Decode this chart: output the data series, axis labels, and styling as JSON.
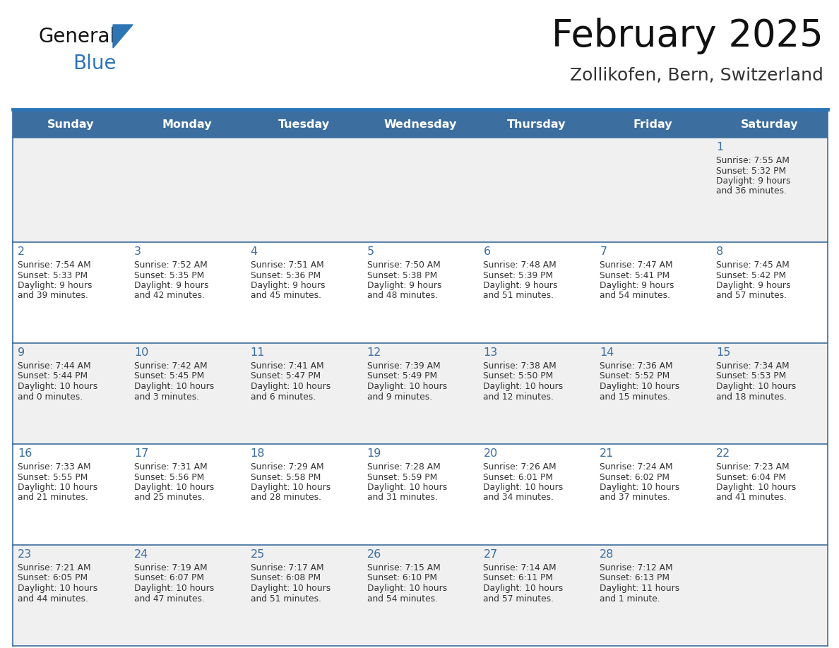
{
  "title": "February 2025",
  "subtitle": "Zollikofen, Bern, Switzerland",
  "header_bg_color": "#3c6e9f",
  "header_text_color": "#ffffff",
  "cell_bg_color_light": "#f0f0f0",
  "cell_bg_color_white": "#ffffff",
  "day_number_color": "#3c6e9f",
  "cell_text_color": "#333333",
  "border_color": "#3c6e9f",
  "days_of_week": [
    "Sunday",
    "Monday",
    "Tuesday",
    "Wednesday",
    "Thursday",
    "Friday",
    "Saturday"
  ],
  "weeks": [
    [
      {
        "day": null,
        "sunrise": null,
        "sunset": null,
        "daylight": null
      },
      {
        "day": null,
        "sunrise": null,
        "sunset": null,
        "daylight": null
      },
      {
        "day": null,
        "sunrise": null,
        "sunset": null,
        "daylight": null
      },
      {
        "day": null,
        "sunrise": null,
        "sunset": null,
        "daylight": null
      },
      {
        "day": null,
        "sunrise": null,
        "sunset": null,
        "daylight": null
      },
      {
        "day": null,
        "sunrise": null,
        "sunset": null,
        "daylight": null
      },
      {
        "day": 1,
        "sunrise": "7:55 AM",
        "sunset": "5:32 PM",
        "daylight": "9 hours\nand 36 minutes."
      }
    ],
    [
      {
        "day": 2,
        "sunrise": "7:54 AM",
        "sunset": "5:33 PM",
        "daylight": "9 hours\nand 39 minutes."
      },
      {
        "day": 3,
        "sunrise": "7:52 AM",
        "sunset": "5:35 PM",
        "daylight": "9 hours\nand 42 minutes."
      },
      {
        "day": 4,
        "sunrise": "7:51 AM",
        "sunset": "5:36 PM",
        "daylight": "9 hours\nand 45 minutes."
      },
      {
        "day": 5,
        "sunrise": "7:50 AM",
        "sunset": "5:38 PM",
        "daylight": "9 hours\nand 48 minutes."
      },
      {
        "day": 6,
        "sunrise": "7:48 AM",
        "sunset": "5:39 PM",
        "daylight": "9 hours\nand 51 minutes."
      },
      {
        "day": 7,
        "sunrise": "7:47 AM",
        "sunset": "5:41 PM",
        "daylight": "9 hours\nand 54 minutes."
      },
      {
        "day": 8,
        "sunrise": "7:45 AM",
        "sunset": "5:42 PM",
        "daylight": "9 hours\nand 57 minutes."
      }
    ],
    [
      {
        "day": 9,
        "sunrise": "7:44 AM",
        "sunset": "5:44 PM",
        "daylight": "10 hours\nand 0 minutes."
      },
      {
        "day": 10,
        "sunrise": "7:42 AM",
        "sunset": "5:45 PM",
        "daylight": "10 hours\nand 3 minutes."
      },
      {
        "day": 11,
        "sunrise": "7:41 AM",
        "sunset": "5:47 PM",
        "daylight": "10 hours\nand 6 minutes."
      },
      {
        "day": 12,
        "sunrise": "7:39 AM",
        "sunset": "5:49 PM",
        "daylight": "10 hours\nand 9 minutes."
      },
      {
        "day": 13,
        "sunrise": "7:38 AM",
        "sunset": "5:50 PM",
        "daylight": "10 hours\nand 12 minutes."
      },
      {
        "day": 14,
        "sunrise": "7:36 AM",
        "sunset": "5:52 PM",
        "daylight": "10 hours\nand 15 minutes."
      },
      {
        "day": 15,
        "sunrise": "7:34 AM",
        "sunset": "5:53 PM",
        "daylight": "10 hours\nand 18 minutes."
      }
    ],
    [
      {
        "day": 16,
        "sunrise": "7:33 AM",
        "sunset": "5:55 PM",
        "daylight": "10 hours\nand 21 minutes."
      },
      {
        "day": 17,
        "sunrise": "7:31 AM",
        "sunset": "5:56 PM",
        "daylight": "10 hours\nand 25 minutes."
      },
      {
        "day": 18,
        "sunrise": "7:29 AM",
        "sunset": "5:58 PM",
        "daylight": "10 hours\nand 28 minutes."
      },
      {
        "day": 19,
        "sunrise": "7:28 AM",
        "sunset": "5:59 PM",
        "daylight": "10 hours\nand 31 minutes."
      },
      {
        "day": 20,
        "sunrise": "7:26 AM",
        "sunset": "6:01 PM",
        "daylight": "10 hours\nand 34 minutes."
      },
      {
        "day": 21,
        "sunrise": "7:24 AM",
        "sunset": "6:02 PM",
        "daylight": "10 hours\nand 37 minutes."
      },
      {
        "day": 22,
        "sunrise": "7:23 AM",
        "sunset": "6:04 PM",
        "daylight": "10 hours\nand 41 minutes."
      }
    ],
    [
      {
        "day": 23,
        "sunrise": "7:21 AM",
        "sunset": "6:05 PM",
        "daylight": "10 hours\nand 44 minutes."
      },
      {
        "day": 24,
        "sunrise": "7:19 AM",
        "sunset": "6:07 PM",
        "daylight": "10 hours\nand 47 minutes."
      },
      {
        "day": 25,
        "sunrise": "7:17 AM",
        "sunset": "6:08 PM",
        "daylight": "10 hours\nand 51 minutes."
      },
      {
        "day": 26,
        "sunrise": "7:15 AM",
        "sunset": "6:10 PM",
        "daylight": "10 hours\nand 54 minutes."
      },
      {
        "day": 27,
        "sunrise": "7:14 AM",
        "sunset": "6:11 PM",
        "daylight": "10 hours\nand 57 minutes."
      },
      {
        "day": 28,
        "sunrise": "7:12 AM",
        "sunset": "6:13 PM",
        "daylight": "11 hours\nand 1 minute."
      },
      {
        "day": null,
        "sunrise": null,
        "sunset": null,
        "daylight": null
      }
    ]
  ],
  "logo_text_general": "General",
  "logo_text_blue": "Blue",
  "accent_color": "#2e75b6",
  "logo_triangle_color": "#2e75b6",
  "separator_line_color": "#2e75b6"
}
